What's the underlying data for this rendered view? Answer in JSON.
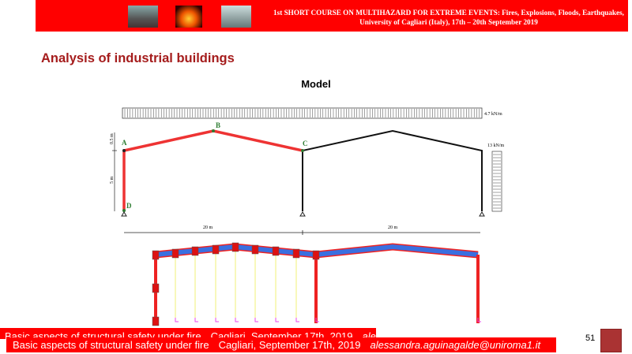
{
  "header": {
    "line1": "1st SHORT COURSE ON MULTIHAZARD FOR EXTREME EVENTS: Fires, Explosions, Floods, Earthquakes,",
    "line2": "University of Cagliari (Italy), 17th – 20th September 2019",
    "images": [
      "volcano-eruption-photo",
      "fire-photo",
      "flood-photo"
    ]
  },
  "slide": {
    "title": "Analysis of industrial buildings",
    "subtitle": "Model"
  },
  "diagram": {
    "roof_load": "4.7 kN/m",
    "wind_load": "13 kN/m",
    "nodes": [
      "A",
      "B",
      "C",
      "D"
    ],
    "dim_h1": "0.5 m",
    "dim_h2": "5 m",
    "span1": "20 m",
    "span2": "20 m"
  },
  "footer": {
    "course": "Basic aspects of structural safety under fire",
    "place_date": "Cagliari, September 17th, 2019",
    "email": "alessandra.aguinagalde@uniroma1.it",
    "page": "51"
  },
  "colors": {
    "brand_red": "#ff0000",
    "title_red": "#a51c1c",
    "node_green": "#2e7d32"
  }
}
